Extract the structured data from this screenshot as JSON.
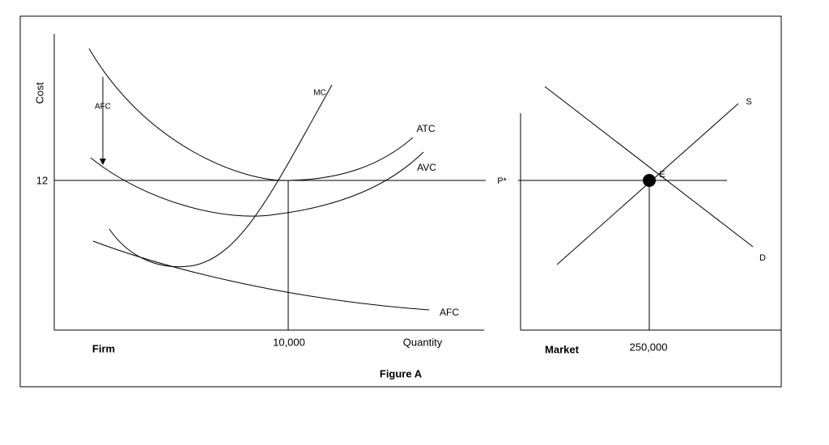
{
  "firm": {
    "y_axis_label": "Cost",
    "price_label": "12",
    "afc_arrow_label": "AFC",
    "curves": {
      "mc": "MC",
      "atc": "ATC",
      "avc": "AVC",
      "afc": "AFC"
    },
    "title": "Firm",
    "quantity_tick": "10,000",
    "x_axis_label": "Quantity"
  },
  "market": {
    "price_label": "P*",
    "equilibrium_label": "E",
    "supply_label": "S",
    "demand_label": "D",
    "title": "Market",
    "quantity_tick": "250,000"
  },
  "caption": "Figure A"
}
